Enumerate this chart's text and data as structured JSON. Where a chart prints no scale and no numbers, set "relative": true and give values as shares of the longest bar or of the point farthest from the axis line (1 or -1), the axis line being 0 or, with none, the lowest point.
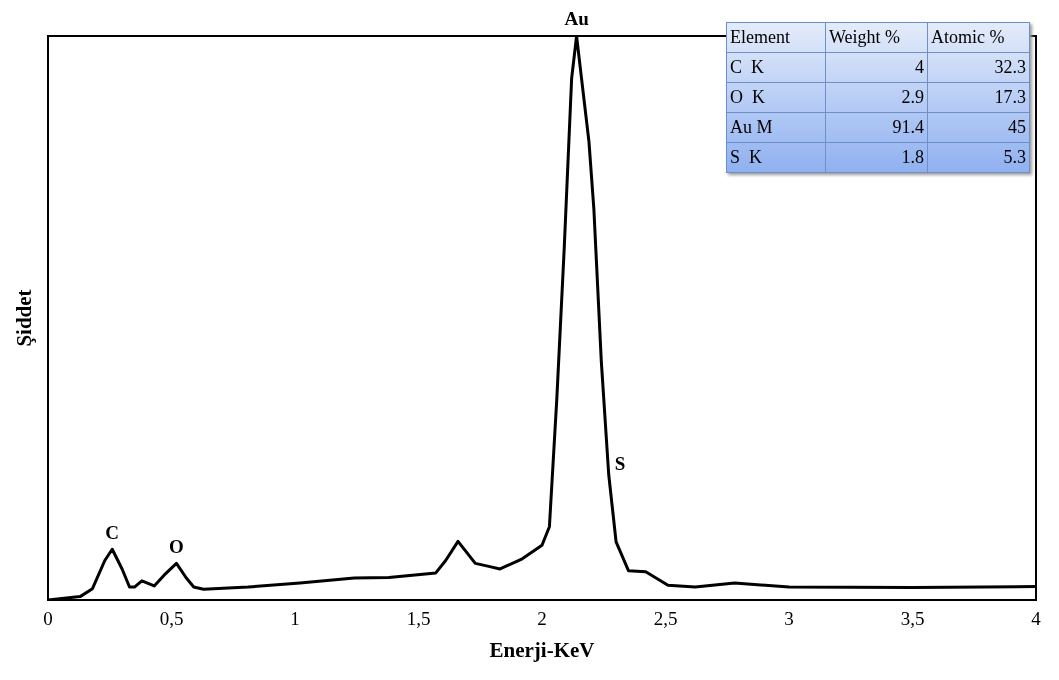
{
  "chart_data": [
    {
      "type": "line",
      "xlabel": "Enerji-KeV",
      "ylabel": "Şiddet",
      "relative": true,
      "color": "#000000",
      "marker": "none",
      "line_style": "solid",
      "grid": false,
      "legend": false,
      "xlim": [
        0,
        4
      ],
      "xticks": [
        0,
        {
          "value": 0.5,
          "label": "0,5"
        },
        1,
        {
          "value": 1.5,
          "label": "1,5"
        },
        2,
        {
          "value": 2.5,
          "label": "2,5"
        },
        3,
        {
          "value": 3.5,
          "label": "3,5"
        },
        4
      ],
      "x": [
        0,
        0.13,
        0.18,
        0.23,
        0.26,
        0.3,
        0.33,
        0.35,
        0.38,
        0.43,
        0.47,
        0.52,
        0.56,
        0.59,
        0.63,
        0.81,
        1.02,
        1.24,
        1.38,
        1.57,
        1.61,
        1.66,
        1.73,
        1.78,
        1.83,
        1.92,
        2.0,
        2.03,
        2.06,
        2.09,
        2.12,
        2.14,
        2.16,
        2.19,
        2.21,
        2.24,
        2.27,
        2.3,
        2.35,
        2.42,
        2.51,
        2.62,
        2.78,
        3.0,
        3.5,
        4.0
      ],
      "values": [
        0,
        0.006,
        0.02,
        0.07,
        0.09,
        0.055,
        0.023,
        0.023,
        0.034,
        0.025,
        0.044,
        0.065,
        0.039,
        0.023,
        0.019,
        0.023,
        0.03,
        0.039,
        0.04,
        0.048,
        0.07,
        0.104,
        0.065,
        0.06,
        0.055,
        0.073,
        0.097,
        0.13,
        0.357,
        0.624,
        0.925,
        1.0,
        0.925,
        0.813,
        0.693,
        0.424,
        0.223,
        0.103,
        0.052,
        0.05,
        0.026,
        0.023,
        0.03,
        0.023,
        0.022,
        0.024
      ],
      "annotations": [
        {
          "text": "C",
          "x": 0.26,
          "y": 0.09
        },
        {
          "text": "O",
          "x": 0.52,
          "y": 0.065
        },
        {
          "text": "Au",
          "x": 2.14,
          "y": 1.0
        },
        {
          "text": "S",
          "x": 2.27,
          "y": 0.223
        }
      ]
    },
    {
      "type": "other",
      "data_labels": true,
      "legend_title": "Element",
      "categories": [
        "C  K",
        "O  K",
        "Au M",
        "S  K"
      ],
      "series": [
        {
          "name": "Weight %",
          "values": [
            4,
            2.9,
            91.4,
            1.8
          ]
        },
        {
          "name": "Atomic %",
          "values": [
            32.3,
            17.3,
            45,
            5.3
          ]
        }
      ]
    }
  ]
}
